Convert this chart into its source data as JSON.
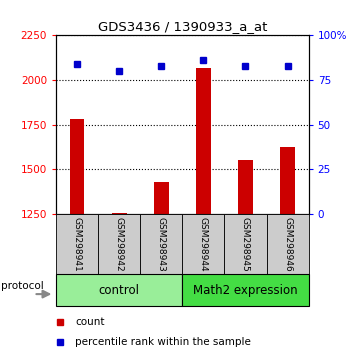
{
  "title": "GDS3436 / 1390933_a_at",
  "samples": [
    "GSM298941",
    "GSM298942",
    "GSM298943",
    "GSM298944",
    "GSM298945",
    "GSM298946"
  ],
  "counts": [
    1780,
    1255,
    1430,
    2070,
    1555,
    1625
  ],
  "percentiles": [
    84,
    80,
    83,
    86,
    83,
    83
  ],
  "ylim_left": [
    1250,
    2250
  ],
  "ylim_right": [
    0,
    100
  ],
  "yticks_left": [
    1250,
    1500,
    1750,
    2000,
    2250
  ],
  "yticks_right": [
    0,
    25,
    50,
    75,
    100
  ],
  "ytick_labels_right": [
    "0",
    "25",
    "50",
    "75",
    "100%"
  ],
  "bar_color": "#cc0000",
  "square_color": "#0000cc",
  "bar_width": 0.35,
  "groups": [
    {
      "label": "control",
      "indices": [
        0,
        1,
        2
      ],
      "color": "#99ee99"
    },
    {
      "label": "Math2 expression",
      "indices": [
        3,
        4,
        5
      ],
      "color": "#44dd44"
    }
  ],
  "protocol_label": "protocol",
  "legend_count_label": "count",
  "legend_pct_label": "percentile rank within the sample",
  "plot_bg": "#ffffff",
  "label_bg": "#cccccc",
  "grid_dotted_color": "#000000"
}
